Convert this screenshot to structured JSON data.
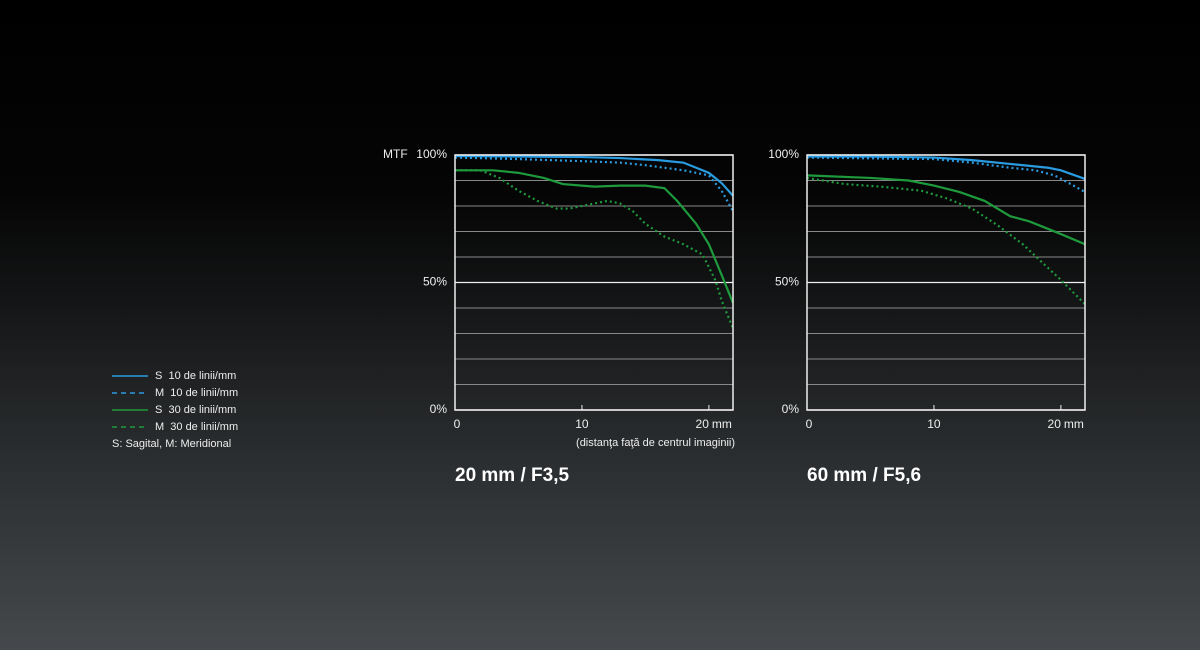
{
  "chart_data": [
    {
      "type": "line",
      "title": "20 mm / F3,5",
      "ylabel": "MTF",
      "xlabel": "(distanţa faţă de centrul imaginii)",
      "x_unit": "mm",
      "legend_note": "S: Sagital, M: Meridional",
      "xlim": [
        0,
        21.9
      ],
      "xticks": [
        0,
        10,
        20
      ],
      "ylim": [
        0,
        100
      ],
      "yticks": [
        {
          "value": 0,
          "label": "0%"
        },
        {
          "value": 50,
          "label": "50%"
        },
        {
          "value": 100,
          "label": "100%"
        }
      ],
      "grid_lines": [
        10,
        20,
        30,
        40,
        60,
        70,
        80,
        90
      ],
      "series": [
        {
          "name": "S  10 de linii/mm",
          "color": "#2a9be0",
          "dash": "solid",
          "x": [
            0,
            5,
            10,
            13,
            16,
            18,
            20,
            21,
            21.9
          ],
          "values": [
            99.6,
            99.4,
            99.2,
            98.8,
            98,
            97,
            93,
            89,
            84
          ]
        },
        {
          "name": "M  10 de linii/mm",
          "color": "#2a9be0",
          "dash": "dotted",
          "x": [
            0,
            5,
            10,
            13,
            15,
            18,
            20,
            21,
            21.9
          ],
          "values": [
            99,
            98.4,
            97.6,
            97,
            96,
            94,
            92,
            86,
            78
          ]
        },
        {
          "name": "S  30 de linii/mm",
          "color": "#1e9a3c",
          "dash": "solid",
          "x": [
            0,
            3,
            5,
            7,
            8.5,
            10,
            11,
            13,
            15,
            16.5,
            17.5,
            19,
            20,
            21,
            21.9
          ],
          "values": [
            94,
            94,
            93,
            91,
            88.6,
            88,
            87.6,
            88,
            88,
            87,
            82,
            73,
            65,
            53,
            42
          ]
        },
        {
          "name": "M  30 de linii/mm",
          "color": "#1e9a3c",
          "dash": "dotted",
          "x": [
            0,
            2,
            3.5,
            5,
            6.5,
            8,
            9,
            10,
            11,
            12,
            13,
            14,
            15,
            16.5,
            18,
            19.5,
            20.5,
            21,
            21.9
          ],
          "values": [
            94,
            94,
            91,
            86,
            82,
            79,
            79,
            80,
            81,
            82,
            81,
            78,
            73,
            68,
            65,
            61,
            51,
            43,
            32
          ]
        }
      ]
    },
    {
      "type": "line",
      "title": "60 mm / F5,6",
      "x_unit": "mm",
      "xlim": [
        0,
        21.9
      ],
      "xticks": [
        0,
        10,
        20
      ],
      "ylim": [
        0,
        100
      ],
      "yticks": [
        {
          "value": 0,
          "label": "0%"
        },
        {
          "value": 50,
          "label": "50%"
        },
        {
          "value": 100,
          "label": "100%"
        }
      ],
      "grid_lines": [
        10,
        20,
        30,
        40,
        60,
        70,
        80,
        90
      ],
      "series": [
        {
          "name": "S  10 de linii/mm",
          "color": "#2a9be0",
          "dash": "solid",
          "x": [
            0,
            5,
            10,
            13,
            16,
            19,
            20,
            21.9
          ],
          "values": [
            99.4,
            99.4,
            99,
            98,
            96.5,
            95,
            94,
            90.6
          ]
        },
        {
          "name": "M  10 de linii/mm",
          "color": "#2a9be0",
          "dash": "dotted",
          "x": [
            0,
            10,
            13,
            16,
            18,
            19.5,
            21,
            21.9
          ],
          "values": [
            99,
            98.4,
            97,
            95,
            94,
            92,
            88,
            85.5
          ]
        },
        {
          "name": "S  30 de linii/mm",
          "color": "#1e9a3c",
          "dash": "solid",
          "x": [
            0,
            5,
            8,
            10,
            12,
            14,
            16,
            17.5,
            19,
            20,
            21.9
          ],
          "values": [
            92,
            91,
            90,
            88,
            85.5,
            82,
            76,
            74,
            71,
            69,
            65
          ]
        },
        {
          "name": "M  30 de linii/mm",
          "color": "#1e9a3c",
          "dash": "dotted",
          "x": [
            0,
            3,
            6,
            9,
            11,
            13,
            15,
            17,
            18.5,
            20,
            21.9
          ],
          "values": [
            91,
            88.6,
            87.5,
            86,
            83,
            79,
            72.5,
            65,
            58,
            51,
            41.5
          ]
        }
      ]
    }
  ]
}
